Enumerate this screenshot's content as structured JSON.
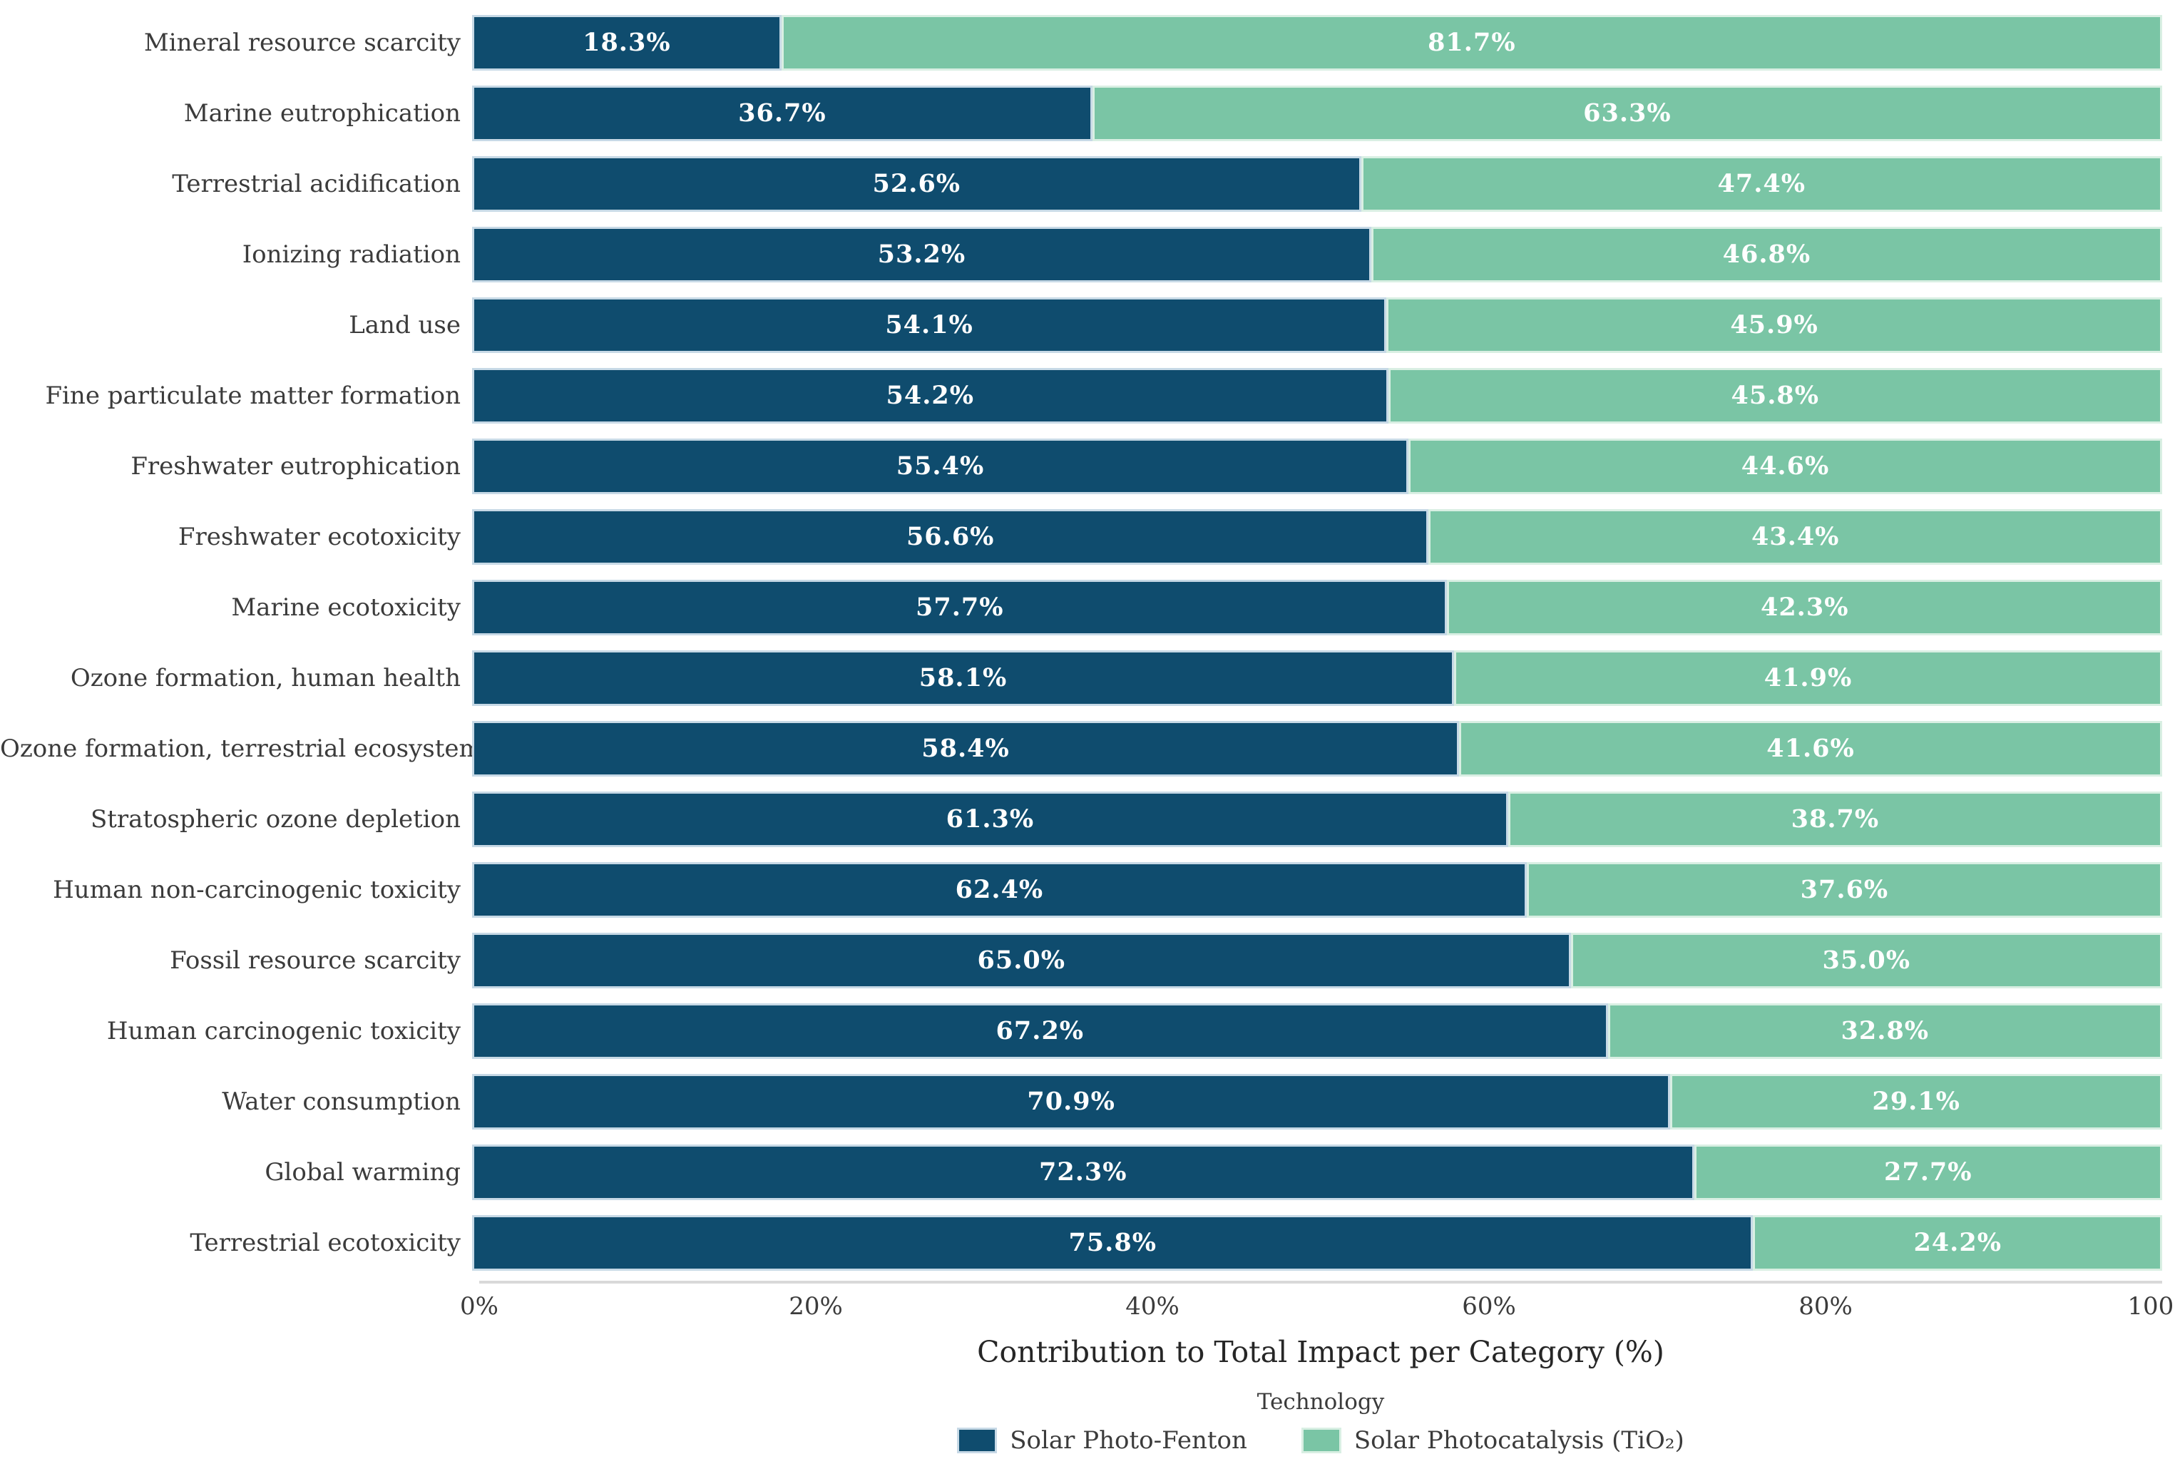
{
  "chart_data": {
    "type": "bar",
    "orientation": "horizontal",
    "stacked": true,
    "title": "",
    "xlabel": "Contribution to Total Impact per Category (%)",
    "ylabel": "",
    "xlim": [
      0,
      100
    ],
    "x_ticks": [
      "0%",
      "20%",
      "40%",
      "60%",
      "80%",
      "100%"
    ],
    "grid": false,
    "legend_title": "Technology",
    "legend_position": "bottom-center",
    "value_label_color": "#ffffff",
    "value_label_suffix": "%",
    "categories": [
      "Mineral resource scarcity",
      "Marine eutrophication",
      "Terrestrial acidification",
      "Ionizing radiation",
      "Land use",
      "Fine particulate matter formation",
      "Freshwater eutrophication",
      "Freshwater ecotoxicity",
      "Marine ecotoxicity",
      "Ozone formation, human health",
      "Ozone formation, terrestrial ecosystems",
      "Stratospheric ozone depletion",
      "Human non-carcinogenic toxicity",
      "Fossil resource scarcity",
      "Human carcinogenic toxicity",
      "Water consumption",
      "Global warming",
      "Terrestrial ecotoxicity"
    ],
    "series": [
      {
        "name": "Solar Photo-Fenton",
        "color": "#0f4c6e",
        "edge_color": "#c7d9e6",
        "values": [
          18.3,
          36.7,
          52.6,
          53.2,
          54.1,
          54.2,
          55.4,
          56.6,
          57.7,
          58.1,
          58.4,
          61.3,
          62.4,
          65.0,
          67.2,
          70.9,
          72.3,
          75.8
        ]
      },
      {
        "name": "Solar Photocatalysis (TiO₂)",
        "color": "#7ac5a5",
        "edge_color": "#d9efe3",
        "values": [
          81.7,
          63.3,
          47.4,
          46.8,
          45.9,
          45.8,
          44.6,
          43.4,
          42.3,
          41.9,
          41.6,
          38.7,
          37.6,
          35.0,
          32.8,
          29.1,
          27.7,
          24.2
        ]
      }
    ],
    "colors": {
      "background": "#ffffff",
      "axis_line": "#d9d9d9",
      "tick_label": "#3b3b3b",
      "category_label": "#3b3b3b",
      "axis_title": "#262626"
    }
  }
}
